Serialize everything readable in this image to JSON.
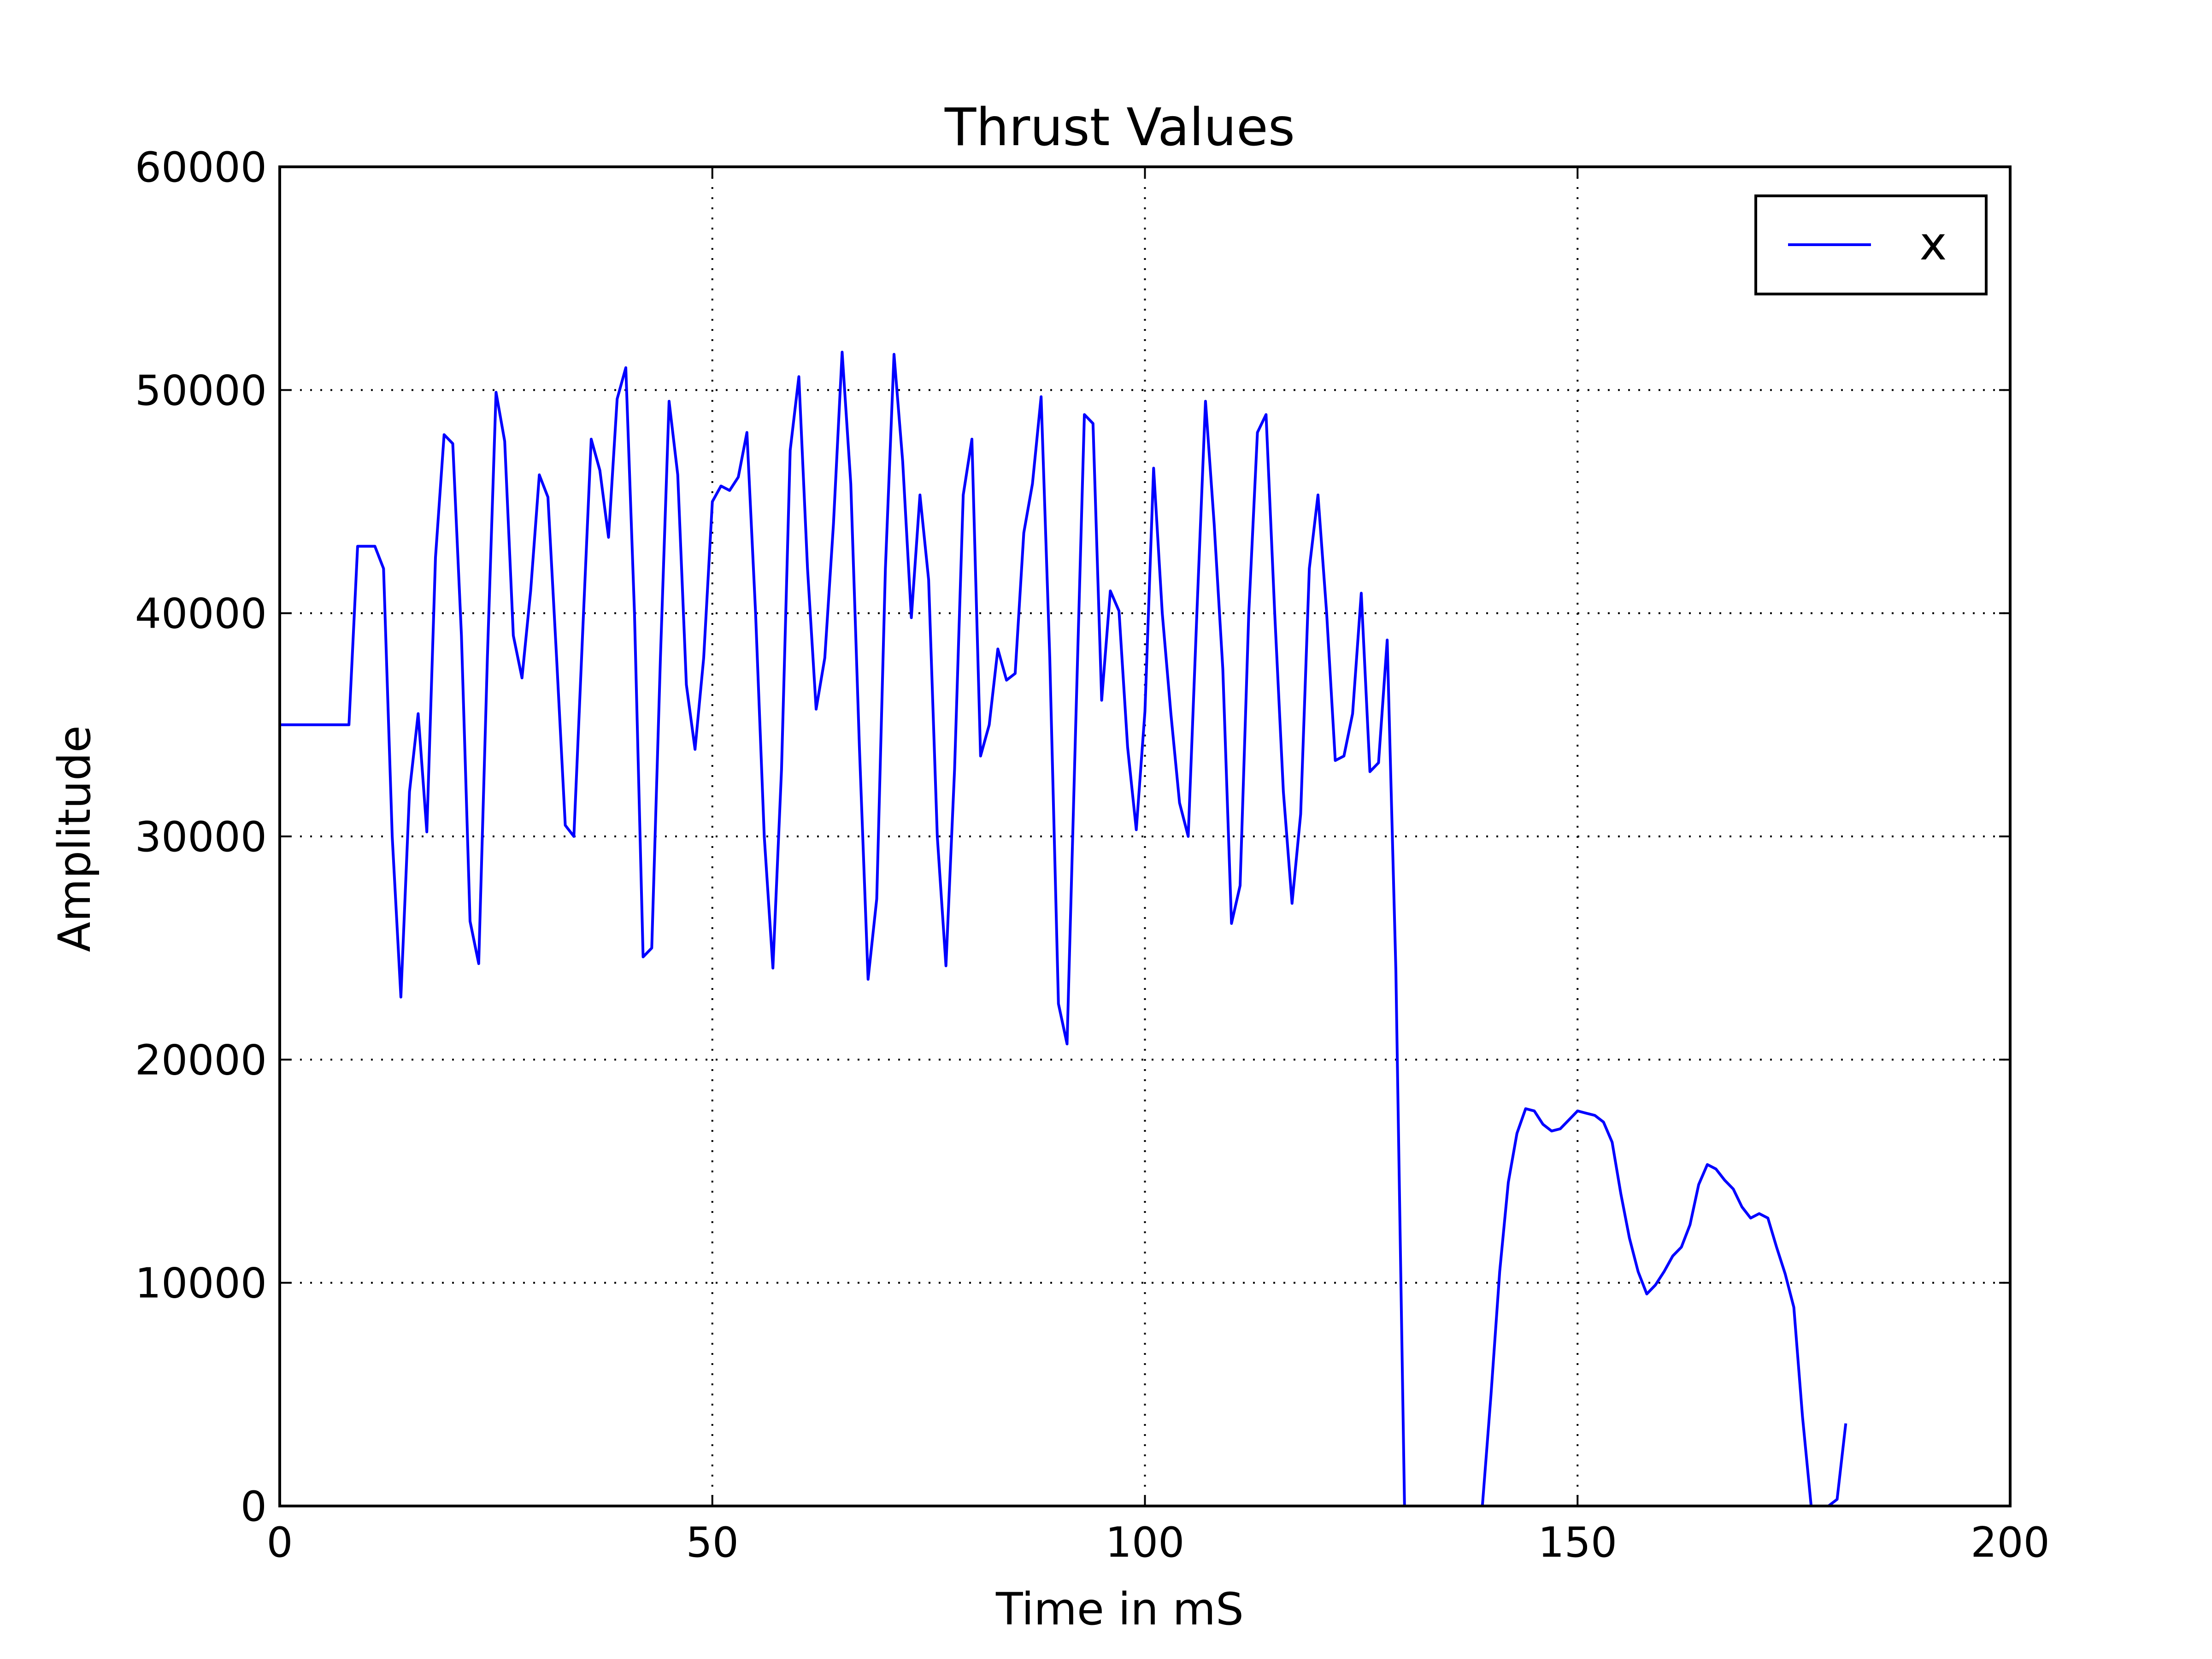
{
  "chart_data": {
    "type": "line",
    "title": "Thrust Values",
    "xlabel": "Time in mS",
    "ylabel": "Amplitude",
    "xlim": [
      0,
      200
    ],
    "ylim": [
      0,
      60000
    ],
    "xticks": [
      0,
      50,
      100,
      150,
      200
    ],
    "yticks": [
      0,
      10000,
      20000,
      30000,
      40000,
      50000,
      60000
    ],
    "grid": true,
    "legend_position": "top-right",
    "series": [
      {
        "name": "x",
        "color": "#0000ff",
        "segments": [
          {
            "x": [
              0,
              1,
              2,
              3,
              4,
              5,
              6,
              7,
              8,
              9,
              10,
              11,
              12,
              13,
              14,
              15,
              16,
              17,
              18,
              19,
              20,
              21,
              22,
              23,
              24,
              25,
              26,
              27,
              28,
              29,
              30,
              31,
              32,
              33,
              34,
              35,
              36,
              37,
              38,
              39,
              40,
              41,
              42,
              43,
              44,
              45,
              46,
              47,
              48,
              49,
              50,
              51,
              52,
              53,
              54,
              55,
              56,
              57,
              58,
              59,
              60,
              61,
              62,
              63,
              64,
              65,
              66,
              67,
              68,
              69,
              70,
              71,
              72,
              73,
              74,
              75,
              76,
              77,
              78,
              79,
              80,
              81,
              82,
              83,
              84,
              85,
              86,
              87,
              88,
              89,
              90,
              91,
              92,
              93,
              94,
              95,
              96,
              97,
              98,
              99,
              100,
              101,
              102,
              103,
              104,
              105,
              106,
              107,
              108,
              109,
              110,
              111,
              112,
              113,
              114,
              115,
              116,
              117,
              118,
              119,
              120,
              121,
              122,
              123,
              124,
              125,
              126,
              127,
              128,
              129,
              130
            ],
            "y": [
              35000,
              35000,
              35000,
              35000,
              35000,
              35000,
              35000,
              35000,
              35000,
              43000,
              43000,
              43000,
              42000,
              30000,
              22800,
              32000,
              35500,
              30200,
              42500,
              48000,
              47600,
              39000,
              26200,
              24300,
              38000,
              49900,
              47700,
              39000,
              37100,
              41000,
              46200,
              45200,
              38000,
              30500,
              30000,
              39000,
              47800,
              46400,
              43400,
              49600,
              51000,
              40000,
              24600,
              25000,
              38000,
              49500,
              46200,
              36800,
              33900,
              38000,
              45000,
              45700,
              45500,
              46100,
              48100,
              40000,
              30000,
              24100,
              33000,
              47300,
              50600,
              42000,
              35700,
              38000,
              44000,
              51700,
              45800,
              34000,
              23600,
              27200,
              42000,
              51600,
              46800,
              39800,
              45300,
              41500,
              30000,
              24200,
              33000,
              45300,
              47800,
              33600,
              35000,
              38400,
              37000,
              37300,
              43600,
              45800,
              49700,
              38000,
              22500,
              20700,
              35000,
              48900,
              48500,
              36100,
              41000,
              40100,
              34000,
              30300,
              35600,
              46500,
              40000,
              35500,
              31500,
              30000,
              40000,
              49500,
              44000,
              37500,
              26100,
              27800,
              40000,
              48100,
              48900,
              40000,
              32000,
              27000,
              31000,
              42000,
              45300,
              40000,
              33400,
              33600,
              35500,
              40900,
              32900,
              33300,
              38800,
              24000,
              0
            ]
          },
          {
            "x": [
              139,
              140,
              141,
              142,
              143,
              144,
              145,
              146,
              147,
              148,
              149,
              150,
              151,
              152,
              153,
              154,
              155,
              156,
              157,
              158,
              159,
              160,
              161,
              162,
              163,
              164,
              165,
              166,
              167,
              168,
              169,
              170,
              171,
              172,
              173,
              174,
              175,
              176,
              177,
              178,
              179,
              180,
              181
            ],
            "y": [
              0,
              5000,
              10500,
              14500,
              16700,
              17800,
              17700,
              17100,
              16800,
              16900,
              17300,
              17700,
              17600,
              17500,
              17200,
              16300,
              14000,
              12000,
              10500,
              9500,
              9900,
              10500,
              11200,
              11600,
              12600,
              14400,
              15300,
              15100,
              14600,
              14200,
              13400,
              12900,
              13100,
              12900,
              11600,
              10400,
              8900,
              4000,
              0,
              0,
              0,
              300,
              3700
            ]
          }
        ]
      }
    ]
  }
}
